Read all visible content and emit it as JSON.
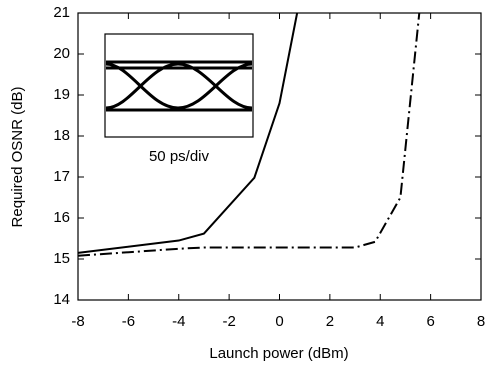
{
  "chart_data": {
    "type": "line",
    "x_label": "Launch power (dBm)",
    "y_label": "Required OSNR (dB)",
    "inset_label": "50 ps/div",
    "series": [
      {
        "color": "#000000",
        "dash": "solid",
        "x": [
          -8,
          -4,
          -3,
          -1,
          0,
          0.7
        ],
        "values": [
          15.15,
          15.45,
          15.62,
          16.98,
          18.8,
          21
        ]
      },
      {
        "color": "#000000",
        "dash": "dashdot",
        "x": [
          -8,
          -4,
          -3,
          3,
          3.8,
          4.8,
          5.55
        ],
        "values": [
          15.08,
          15.25,
          15.28,
          15.28,
          15.42,
          16.5,
          21
        ]
      }
    ],
    "xlim": [
      -8,
      8
    ],
    "xticks": [
      -8,
      -6,
      -4,
      -2,
      0,
      2,
      4,
      6,
      8
    ],
    "ylim": [
      14,
      21
    ],
    "yticks": [
      14,
      15,
      16,
      17,
      18,
      19,
      20,
      21
    ]
  }
}
